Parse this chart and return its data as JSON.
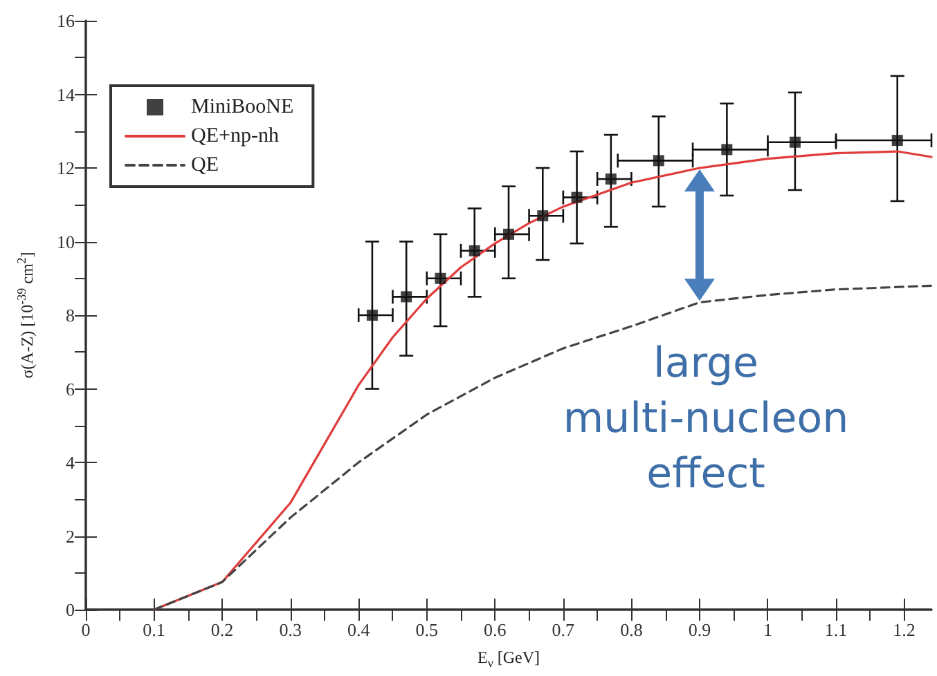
{
  "chart_data": {
    "type": "scatter",
    "xlabel": "E$_{ν}$ [GeV]",
    "ylabel": "σ(A-Z) [10$^{-39}$ cm$^{2}$]",
    "xlim": [
      0,
      1.24
    ],
    "xticks": [
      0,
      0.1,
      0.2,
      0.3,
      0.4,
      0.5,
      0.6,
      0.7,
      0.8,
      0.9,
      1,
      1.1,
      1.2
    ],
    "ylim": [
      0,
      16
    ],
    "yticks": [
      0,
      2,
      4,
      6,
      8,
      10,
      12,
      14,
      16
    ],
    "grid": false,
    "legend": "top left",
    "annotations": [
      "large multi-nucleon effect"
    ],
    "series": [
      {
        "name": "MiniBooNE",
        "marker": "square",
        "color": "#111111",
        "x": [
          0.42,
          0.47,
          0.52,
          0.57,
          0.62,
          0.67,
          0.72,
          0.77,
          0.84,
          0.94,
          1.04,
          1.19
        ],
        "values": [
          8.0,
          8.5,
          9.0,
          9.75,
          10.2,
          10.7,
          11.2,
          11.7,
          12.2,
          12.5,
          12.7,
          12.75
        ],
        "errors": [
          [
            6.0,
            10.0
          ],
          [
            6.9,
            10.0
          ],
          [
            7.7,
            10.2
          ],
          [
            8.5,
            10.9
          ],
          [
            9.0,
            11.5
          ],
          [
            9.5,
            12.0
          ],
          [
            9.95,
            12.45
          ],
          [
            10.4,
            12.9
          ],
          [
            10.95,
            13.4
          ],
          [
            11.25,
            13.75
          ],
          [
            11.4,
            14.05
          ],
          [
            11.1,
            14.5
          ]
        ],
        "xerrors": [
          [
            0.4,
            0.45
          ],
          [
            0.45,
            0.5
          ],
          [
            0.5,
            0.55
          ],
          [
            0.55,
            0.6
          ],
          [
            0.6,
            0.65
          ],
          [
            0.65,
            0.7
          ],
          [
            0.7,
            0.75
          ],
          [
            0.75,
            0.8
          ],
          [
            0.78,
            0.89
          ],
          [
            0.89,
            1.0
          ],
          [
            1.0,
            1.1
          ],
          [
            1.1,
            1.24
          ]
        ]
      },
      {
        "name": "QE+np-nh",
        "type": "line",
        "marker": "none",
        "line_style": "solid",
        "color": "#e03c3c",
        "x": [
          0.1,
          0.2,
          0.3,
          0.35,
          0.4,
          0.45,
          0.5,
          0.55,
          0.6,
          0.65,
          0.7,
          0.8,
          0.9,
          1.0,
          1.1,
          1.19,
          1.24
        ],
        "values": [
          0,
          0.75,
          2.9,
          4.5,
          6.1,
          7.4,
          8.45,
          9.3,
          9.95,
          10.5,
          10.95,
          11.6,
          12.0,
          12.25,
          12.4,
          12.45,
          12.3
        ]
      },
      {
        "name": "QE",
        "type": "line",
        "marker": "none",
        "line_style": "dashed",
        "color": "#444444",
        "x": [
          0.1,
          0.2,
          0.3,
          0.4,
          0.5,
          0.6,
          0.7,
          0.8,
          0.9,
          1.0,
          1.1,
          1.24
        ],
        "values": [
          0,
          0.75,
          2.5,
          4.0,
          5.3,
          6.3,
          7.1,
          7.7,
          8.35,
          8.55,
          8.7,
          8.8
        ]
      }
    ]
  }
}
